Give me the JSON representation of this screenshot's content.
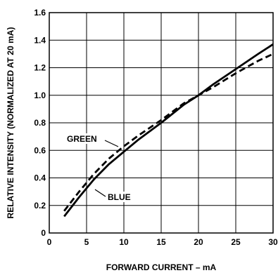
{
  "chart_data": {
    "type": "line",
    "title": "",
    "xlabel": "FORWARD CURRENT – mA",
    "ylabel": "RELATIVE INTENSITY (NORMALIZED AT 20 mA)",
    "xlim": [
      0,
      30
    ],
    "ylim": [
      0,
      1.6
    ],
    "x_ticks": [
      "0",
      "5",
      "10",
      "15",
      "20",
      "25",
      "30"
    ],
    "y_ticks": [
      "0",
      "0.2",
      "0.4",
      "0.6",
      "0.8",
      "1.0",
      "1.2",
      "1.4",
      "1.6"
    ],
    "grid": true,
    "legend": "inline labels with leader lines",
    "series": [
      {
        "name": "BLUE",
        "style": "solid",
        "color": "#000000",
        "x": [
          2,
          4,
          6,
          8,
          10,
          12,
          15,
          18,
          20,
          22,
          25,
          28,
          30
        ],
        "y": [
          0.12,
          0.26,
          0.39,
          0.5,
          0.59,
          0.68,
          0.8,
          0.93,
          1.0,
          1.08,
          1.19,
          1.3,
          1.37
        ]
      },
      {
        "name": "GREEN",
        "style": "dashed",
        "color": "#000000",
        "x": [
          2,
          4,
          6,
          8,
          10,
          12,
          15,
          18,
          20,
          22,
          25,
          28,
          30
        ],
        "y": [
          0.16,
          0.3,
          0.43,
          0.54,
          0.63,
          0.71,
          0.82,
          0.94,
          1.0,
          1.06,
          1.16,
          1.25,
          1.3
        ]
      }
    ]
  }
}
